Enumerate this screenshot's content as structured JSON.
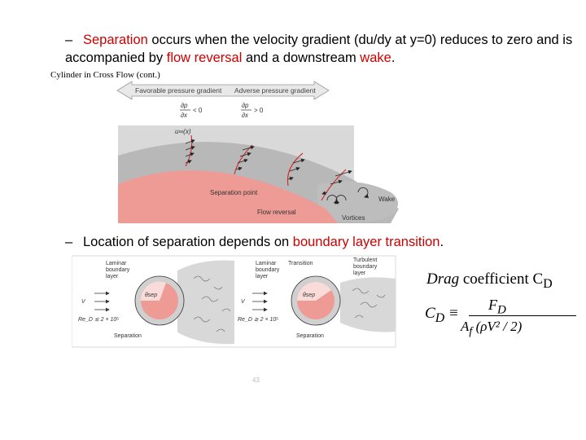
{
  "bullet1": {
    "dash": "–",
    "p1": "Separation",
    "p2": " occurs when the velocity gradient (du/dy at y=0) reduces to zero and is accompanied by ",
    "p3": "flow reversal",
    "p4": " and a downstream ",
    "p5": "wake",
    "p6": "."
  },
  "slide_title": "Cylinder in Cross Flow (cont.)",
  "figure1": {
    "favorable_label": "Favorable pressure gradient",
    "adverse_label": "Adverse pressure gradient",
    "dp": "∂p",
    "dx": "∂x",
    "lt_zero": "< 0",
    "gt_zero": "> 0",
    "u_inf": "u∞(x)",
    "separation_point": "Separation point",
    "flow_reversal": "Flow reversal",
    "wake": "Wake",
    "vortices": "Vortices"
  },
  "bullet2": {
    "dash": "–",
    "p1": "Location of separation depends on ",
    "p2": "boundary layer transition",
    "p3": "."
  },
  "figure2": {
    "left": {
      "laminar": "Laminar",
      "boundary": "boundary",
      "layer": "layer",
      "theta": "θsep",
      "v": "V",
      "re": "Re_D ≲ 2 × 10⁵",
      "separation": "Separation"
    },
    "right": {
      "laminar": "Laminar",
      "boundary": "boundary",
      "layer": "layer",
      "transition": "Transition",
      "turbulent": "Turbulent",
      "boundary2": "boundary",
      "layer2": "layer",
      "theta": "θsep",
      "v": "V",
      "re": "Re_D ≳ 2 × 10⁵",
      "separation": "Separation"
    }
  },
  "formula": {
    "title_it": "Drag",
    "title_rest": " coefficient C",
    "title_sub": "D",
    "lhs": "C",
    "lhs_sub": "D",
    "equiv": "≡",
    "numerator": "F",
    "numerator_sub": "D",
    "denominator": "A",
    "den_sub": "f",
    "den_rest": " (ρV² / 2)"
  },
  "page_number": "43"
}
